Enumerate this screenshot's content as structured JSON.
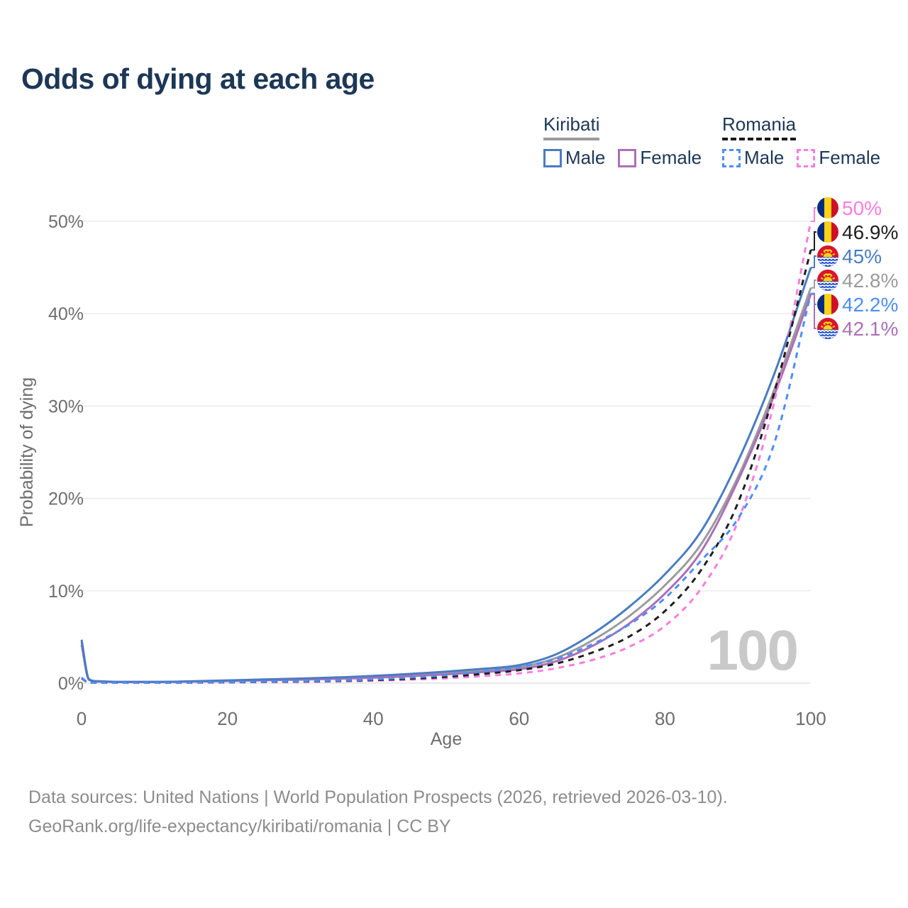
{
  "title": "Odds of dying at each age",
  "legend": {
    "kiribati": {
      "country": "Kiribati",
      "line_style": "solid",
      "header_line_color": "#9b9b9b",
      "male_label": "Male",
      "male_color": "#4a7cc2",
      "female_label": "Female",
      "female_color": "#ab6fb8"
    },
    "romania": {
      "country": "Romania",
      "line_style": "dashed",
      "header_line_color": "#1a1a1a",
      "male_label": "Male",
      "male_color": "#4f8df5",
      "female_label": "Female",
      "female_color": "#fb7ce0"
    }
  },
  "chart_data": {
    "type": "line",
    "title": "Odds of dying at each age",
    "xlabel": "Age",
    "ylabel": "Probability of dying",
    "xlim": [
      0,
      100
    ],
    "ylim_pct": [
      0,
      50
    ],
    "x_ticks": [
      0,
      20,
      40,
      60,
      80,
      100
    ],
    "y_ticks_pct": [
      0,
      10,
      20,
      30,
      40,
      50
    ],
    "y_tick_labels": [
      "0%",
      "10%",
      "20%",
      "30%",
      "40%",
      "50%"
    ],
    "grid": "horizontal",
    "hover_age_watermark": "100",
    "watermark_color": "#c9c9c9",
    "series": [
      {
        "name": "Kiribati Both sexes",
        "color": "#9b9b9b",
        "dash": false,
        "points": [
          [
            0,
            4.45
          ],
          [
            1,
            0.4
          ],
          [
            2,
            0.2
          ],
          [
            5,
            0.13
          ],
          [
            10,
            0.13
          ],
          [
            15,
            0.18
          ],
          [
            20,
            0.26
          ],
          [
            25,
            0.35
          ],
          [
            30,
            0.44
          ],
          [
            35,
            0.55
          ],
          [
            40,
            0.68
          ],
          [
            45,
            0.88
          ],
          [
            50,
            1.1
          ],
          [
            55,
            1.38
          ],
          [
            60,
            1.72
          ],
          [
            65,
            2.7
          ],
          [
            70,
            4.6
          ],
          [
            75,
            7.2
          ],
          [
            80,
            10.6
          ],
          [
            85,
            15.1
          ],
          [
            90,
            22.3
          ],
          [
            95,
            31.8
          ],
          [
            100,
            42.8
          ]
        ]
      },
      {
        "name": "Kiribati Female",
        "color": "#ab6fb8",
        "dash": false,
        "points": [
          [
            0,
            4.15
          ],
          [
            1,
            0.36
          ],
          [
            2,
            0.18
          ],
          [
            5,
            0.12
          ],
          [
            10,
            0.12
          ],
          [
            15,
            0.16
          ],
          [
            20,
            0.22
          ],
          [
            25,
            0.3
          ],
          [
            30,
            0.38
          ],
          [
            35,
            0.47
          ],
          [
            40,
            0.58
          ],
          [
            45,
            0.75
          ],
          [
            50,
            0.95
          ],
          [
            55,
            1.2
          ],
          [
            60,
            1.5
          ],
          [
            65,
            2.35
          ],
          [
            70,
            4.0
          ],
          [
            75,
            6.4
          ],
          [
            80,
            9.7
          ],
          [
            85,
            14.3
          ],
          [
            90,
            21.9
          ],
          [
            95,
            31.2
          ],
          [
            100,
            42.1
          ]
        ]
      },
      {
        "name": "Kiribati Male",
        "color": "#4a7cc2",
        "dash": false,
        "points": [
          [
            0,
            4.7
          ],
          [
            1,
            0.45
          ],
          [
            2,
            0.22
          ],
          [
            5,
            0.14
          ],
          [
            10,
            0.14
          ],
          [
            15,
            0.2
          ],
          [
            20,
            0.3
          ],
          [
            25,
            0.4
          ],
          [
            30,
            0.5
          ],
          [
            35,
            0.62
          ],
          [
            40,
            0.78
          ],
          [
            45,
            1.0
          ],
          [
            50,
            1.25
          ],
          [
            55,
            1.55
          ],
          [
            60,
            1.95
          ],
          [
            65,
            3.1
          ],
          [
            70,
            5.3
          ],
          [
            75,
            8.2
          ],
          [
            80,
            11.8
          ],
          [
            85,
            16.5
          ],
          [
            90,
            24.0
          ],
          [
            95,
            33.5
          ],
          [
            100,
            45.0
          ]
        ]
      },
      {
        "name": "Romania Female",
        "color": "#fb7ce0",
        "dash": true,
        "points": [
          [
            0,
            0.5
          ],
          [
            1,
            0.045
          ],
          [
            2,
            0.03
          ],
          [
            5,
            0.03
          ],
          [
            10,
            0.03
          ],
          [
            15,
            0.05
          ],
          [
            20,
            0.08
          ],
          [
            25,
            0.11
          ],
          [
            30,
            0.14
          ],
          [
            35,
            0.19
          ],
          [
            40,
            0.26
          ],
          [
            45,
            0.37
          ],
          [
            50,
            0.52
          ],
          [
            55,
            0.76
          ],
          [
            60,
            1.05
          ],
          [
            65,
            1.6
          ],
          [
            70,
            2.5
          ],
          [
            75,
            3.9
          ],
          [
            80,
            6.2
          ],
          [
            85,
            10.3
          ],
          [
            90,
            17.5
          ],
          [
            95,
            30.5
          ],
          [
            100,
            50.0
          ]
        ]
      },
      {
        "name": "Romania Both sexes",
        "color": "#1f1f1f",
        "dash": true,
        "points": [
          [
            0,
            0.55
          ],
          [
            1,
            0.05
          ],
          [
            2,
            0.035
          ],
          [
            5,
            0.035
          ],
          [
            10,
            0.035
          ],
          [
            15,
            0.06
          ],
          [
            20,
            0.09
          ],
          [
            25,
            0.13
          ],
          [
            30,
            0.17
          ],
          [
            35,
            0.24
          ],
          [
            40,
            0.33
          ],
          [
            45,
            0.48
          ],
          [
            50,
            0.68
          ],
          [
            55,
            1.0
          ],
          [
            60,
            1.4
          ],
          [
            65,
            2.1
          ],
          [
            70,
            3.3
          ],
          [
            75,
            5.0
          ],
          [
            80,
            7.8
          ],
          [
            85,
            12.3
          ],
          [
            90,
            19.5
          ],
          [
            95,
            31.5
          ],
          [
            100,
            46.9
          ]
        ]
      },
      {
        "name": "Romania Male",
        "color": "#4f8df5",
        "dash": true,
        "points": [
          [
            0,
            0.6
          ],
          [
            1,
            0.06
          ],
          [
            2,
            0.04
          ],
          [
            5,
            0.04
          ],
          [
            10,
            0.04
          ],
          [
            15,
            0.07
          ],
          [
            20,
            0.11
          ],
          [
            25,
            0.15
          ],
          [
            30,
            0.2
          ],
          [
            35,
            0.28
          ],
          [
            40,
            0.4
          ],
          [
            45,
            0.6
          ],
          [
            50,
            0.85
          ],
          [
            55,
            1.25
          ],
          [
            60,
            1.75
          ],
          [
            65,
            2.6
          ],
          [
            70,
            4.2
          ],
          [
            75,
            6.3
          ],
          [
            80,
            9.2
          ],
          [
            85,
            13.3
          ],
          [
            90,
            17.8
          ],
          [
            95,
            26.0
          ],
          [
            100,
            42.2
          ]
        ]
      }
    ],
    "end_labels": [
      {
        "flag": "romania-flag",
        "series": "Romania Female",
        "value": "50%",
        "color": "#fb7ce0"
      },
      {
        "flag": "romania-flag",
        "series": "Romania Both sexes",
        "value": "46.9%",
        "color": "#1f1f1f"
      },
      {
        "flag": "kiribati-flag",
        "series": "Kiribati Male",
        "value": "45%",
        "color": "#4a7cc2"
      },
      {
        "flag": "kiribati-flag",
        "series": "Kiribati Both sexes",
        "value": "42.8%",
        "color": "#9b9b9b"
      },
      {
        "flag": "romania-flag",
        "series": "Romania Male",
        "value": "42.2%",
        "color": "#4f8df5"
      },
      {
        "flag": "kiribati-flag",
        "series": "Kiribati Female",
        "value": "42.1%",
        "color": "#ab6fb8"
      }
    ]
  },
  "source": {
    "line1": "Data sources: United Nations | World Population Prospects (2026, retrieved 2026-03-10).",
    "line2": "GeoRank.org/life-expectancy/kiribati/romania | CC BY"
  }
}
